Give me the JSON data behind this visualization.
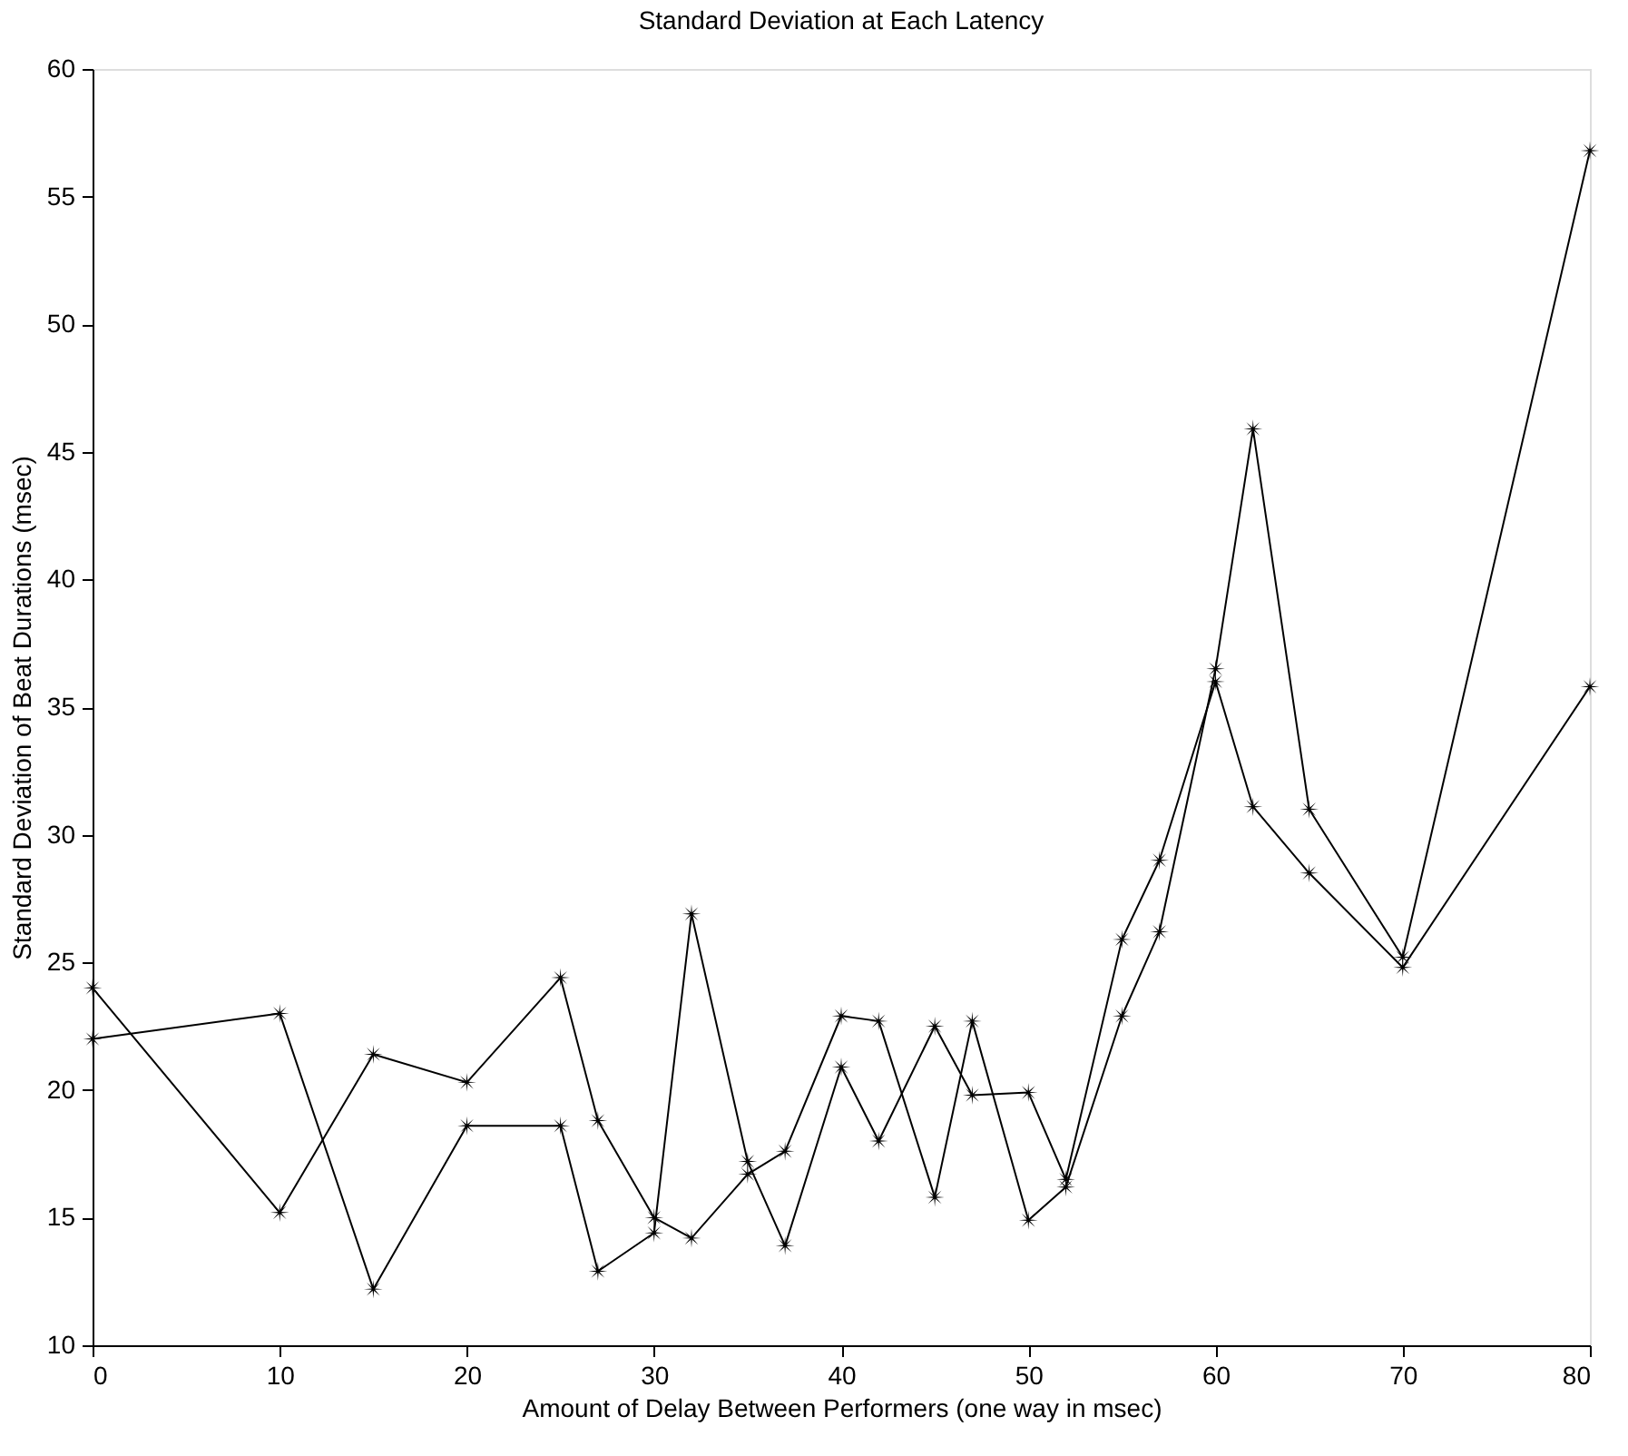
{
  "chart_data": {
    "type": "line",
    "title": "Standard Deviation at Each Latency",
    "xlabel": "Amount of Delay Between Performers (one way in msec)",
    "ylabel": "Standard Deviation of Beat Durations (msec)",
    "x": [
      0,
      10,
      15,
      20,
      25,
      27,
      30,
      32,
      35,
      37,
      40,
      42,
      45,
      47,
      50,
      52,
      55,
      57,
      60,
      62,
      65,
      70,
      80
    ],
    "series": [
      {
        "color": "#000000",
        "values": [
          24.0,
          15.2,
          21.4,
          20.3,
          24.4,
          18.8,
          15.0,
          14.2,
          16.7,
          17.6,
          22.9,
          22.7,
          15.8,
          22.7,
          14.9,
          16.2,
          22.9,
          26.2,
          36.5,
          45.9,
          31.0,
          25.2,
          56.8
        ]
      },
      {
        "color": "#000000",
        "values": [
          22.0,
          23.0,
          12.2,
          18.6,
          18.6,
          12.9,
          14.4,
          26.9,
          17.2,
          13.9,
          20.9,
          18.0,
          22.5,
          19.8,
          19.9,
          16.5,
          25.9,
          29.0,
          36.0,
          31.1,
          28.5,
          24.8,
          35.8
        ]
      }
    ],
    "xlim": [
      0,
      80
    ],
    "xticks": [
      0,
      10,
      20,
      30,
      40,
      50,
      60,
      70,
      80
    ],
    "ylim": [
      10,
      60
    ],
    "yticks": [
      10,
      15,
      20,
      25,
      30,
      35,
      40,
      45,
      50,
      55,
      60
    ],
    "grid": false,
    "legend": false,
    "marker": "star",
    "line_style": "solid"
  }
}
